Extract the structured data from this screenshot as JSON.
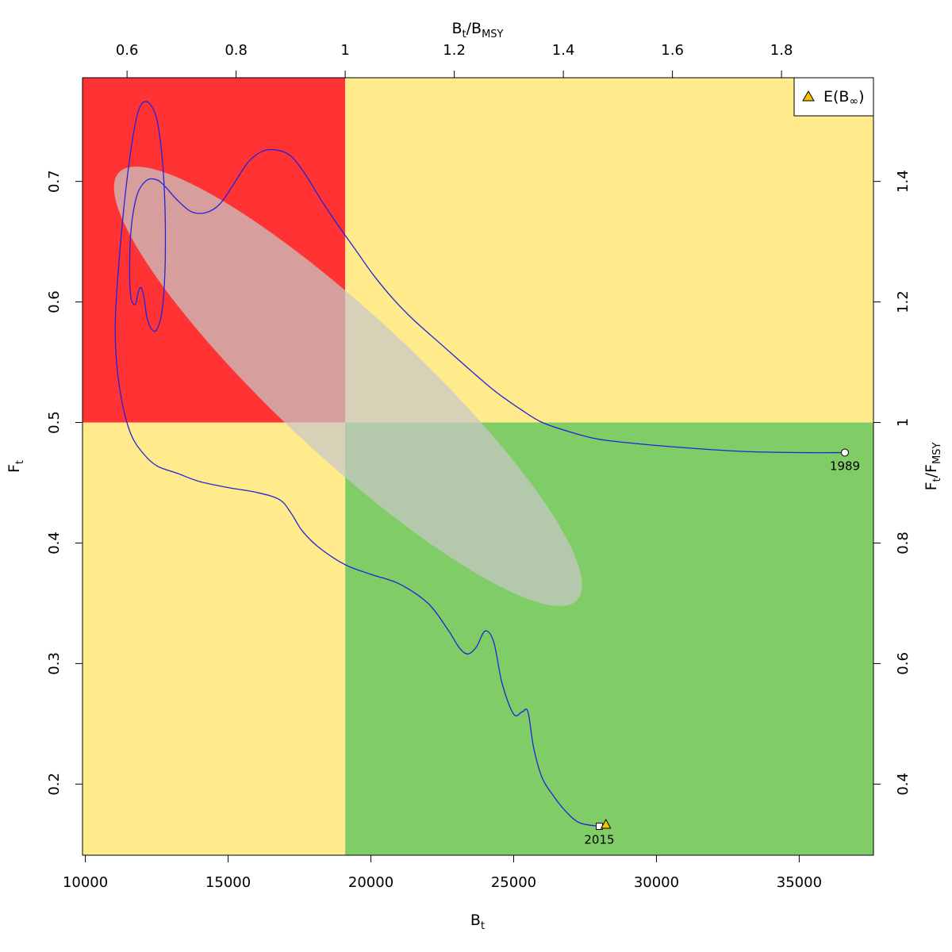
{
  "chart_data": {
    "type": "line",
    "xlabel": {
      "main": "B",
      "sub": "t"
    },
    "ylabel": {
      "main": "F",
      "sub": "t"
    },
    "top_label": {
      "main1": "B",
      "sub1": "t",
      "mid": "/B",
      "sub2": "MSY"
    },
    "right_label": {
      "main1": "F",
      "sub1": "t",
      "mid": "/F",
      "sub2": "MSY"
    },
    "xlim": [
      9900,
      37600
    ],
    "ylim": [
      0.141,
      0.786
    ],
    "x_ticks": [
      10000,
      15000,
      20000,
      25000,
      30000,
      35000
    ],
    "x_tick_labels": [
      "10000",
      "15000",
      "20000",
      "25000",
      "30000",
      "35000"
    ],
    "y_ticks": [
      0.2,
      0.3,
      0.4,
      0.5,
      0.6,
      0.7
    ],
    "y_tick_labels": [
      "0.2",
      "0.3",
      "0.4",
      "0.5",
      "0.6",
      "0.7"
    ],
    "bmsy": 19100,
    "fmsy": 0.5,
    "top_ticks": [
      0.6,
      0.8,
      1.0,
      1.2,
      1.4,
      1.6,
      1.8
    ],
    "top_tick_labels": [
      "0.6",
      "0.8",
      "1",
      "1.2",
      "1.4",
      "1.6",
      "1.8"
    ],
    "right_ticks": [
      0.4,
      0.6,
      0.8,
      1.0,
      1.2,
      1.4
    ],
    "right_tick_labels": [
      "0.4",
      "0.6",
      "0.8",
      "1",
      "1.2",
      "1.4"
    ],
    "zone_colors": {
      "red": "#ff3333",
      "yellow": "#ffea8c",
      "green": "#80cc66"
    },
    "ellipse": {
      "center_x": 19200,
      "center_y": 0.53,
      "fill": "rgba(200,200,200,0.72)"
    },
    "trajectory_color": "#2222dd",
    "trajectory": [
      [
        36600,
        0.475
      ],
      [
        35000,
        0.475
      ],
      [
        33000,
        0.476
      ],
      [
        31000,
        0.479
      ],
      [
        29500,
        0.482
      ],
      [
        28000,
        0.486
      ],
      [
        27000,
        0.492
      ],
      [
        26000,
        0.5
      ],
      [
        25300,
        0.51
      ],
      [
        24400,
        0.525
      ],
      [
        23500,
        0.543
      ],
      [
        22500,
        0.564
      ],
      [
        21500,
        0.585
      ],
      [
        20800,
        0.602
      ],
      [
        20100,
        0.622
      ],
      [
        19500,
        0.642
      ],
      [
        18900,
        0.662
      ],
      [
        18300,
        0.683
      ],
      [
        17700,
        0.706
      ],
      [
        17200,
        0.721
      ],
      [
        16700,
        0.726
      ],
      [
        16200,
        0.725
      ],
      [
        15700,
        0.716
      ],
      [
        15200,
        0.698
      ],
      [
        14700,
        0.681
      ],
      [
        14200,
        0.674
      ],
      [
        13700,
        0.675
      ],
      [
        13200,
        0.685
      ],
      [
        12700,
        0.698
      ],
      [
        12400,
        0.702
      ],
      [
        12100,
        0.7
      ],
      [
        11800,
        0.688
      ],
      [
        11600,
        0.66
      ],
      [
        11550,
        0.625
      ],
      [
        11600,
        0.603
      ],
      [
        11750,
        0.598
      ],
      [
        11850,
        0.608
      ],
      [
        11950,
        0.612
      ],
      [
        12050,
        0.604
      ],
      [
        12150,
        0.588
      ],
      [
        12300,
        0.578
      ],
      [
        12500,
        0.577
      ],
      [
        12700,
        0.595
      ],
      [
        12800,
        0.64
      ],
      [
        12750,
        0.7
      ],
      [
        12550,
        0.746
      ],
      [
        12300,
        0.763
      ],
      [
        12000,
        0.765
      ],
      [
        11750,
        0.748
      ],
      [
        11450,
        0.7
      ],
      [
        11200,
        0.64
      ],
      [
        11050,
        0.585
      ],
      [
        11100,
        0.548
      ],
      [
        11300,
        0.515
      ],
      [
        11600,
        0.49
      ],
      [
        12000,
        0.475
      ],
      [
        12500,
        0.464
      ],
      [
        13200,
        0.458
      ],
      [
        14000,
        0.451
      ],
      [
        15000,
        0.446
      ],
      [
        16000,
        0.442
      ],
      [
        16800,
        0.436
      ],
      [
        17200,
        0.425
      ],
      [
        17600,
        0.41
      ],
      [
        18200,
        0.396
      ],
      [
        19100,
        0.382
      ],
      [
        20000,
        0.374
      ],
      [
        21000,
        0.366
      ],
      [
        22000,
        0.35
      ],
      [
        22700,
        0.328
      ],
      [
        23100,
        0.313
      ],
      [
        23400,
        0.308
      ],
      [
        23700,
        0.314
      ],
      [
        24000,
        0.327
      ],
      [
        24300,
        0.318
      ],
      [
        24600,
        0.283
      ],
      [
        25000,
        0.258
      ],
      [
        25300,
        0.26
      ],
      [
        25500,
        0.26
      ],
      [
        25700,
        0.23
      ],
      [
        26000,
        0.205
      ],
      [
        26400,
        0.19
      ],
      [
        26800,
        0.178
      ],
      [
        27300,
        0.168
      ],
      [
        28000,
        0.165
      ]
    ],
    "start": {
      "x": 36600,
      "y": 0.475,
      "label": "1989"
    },
    "end": {
      "x": 28000,
      "y": 0.165,
      "label": "2015"
    },
    "binf": {
      "x": 28230,
      "y": 0.166
    },
    "legend": {
      "label_main": "E(B",
      "label_sub": "∞",
      "label_close": ")",
      "placement": "top-right",
      "marker_color": "#f5c400"
    }
  }
}
